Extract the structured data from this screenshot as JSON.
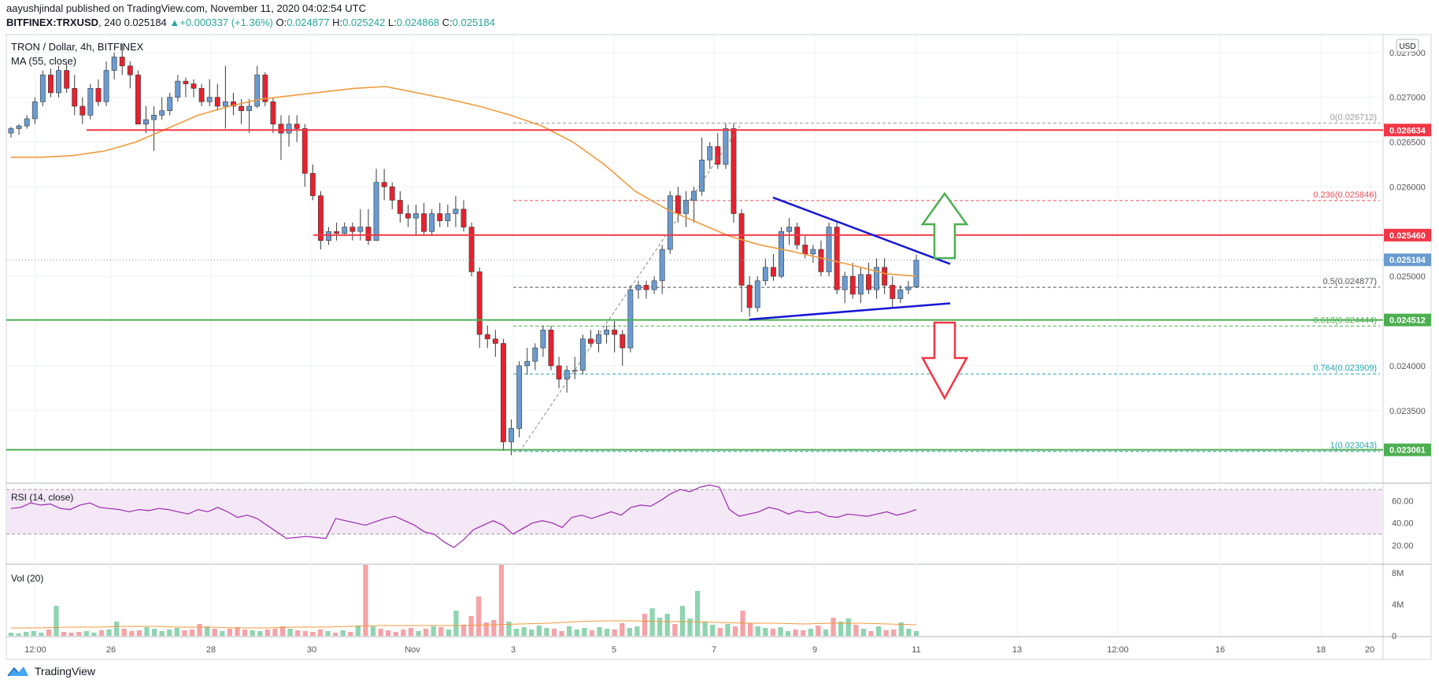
{
  "header": {
    "published_line": "aayushjindal published on TradingView.com, November 11, 2020 04:02:54 UTC",
    "symbol": "BITFINEX:TRXUSD",
    "interval": "240",
    "last": "0.025184",
    "change": "+0.000337 (+1.36%)",
    "open_label": "O:",
    "open": "0.024877",
    "high_label": "H:",
    "high": "0.025242",
    "low_label": "L:",
    "low": "0.024868",
    "close_label": "C:",
    "close": "0.025184"
  },
  "footer": {
    "brand": "TradingView"
  },
  "colors": {
    "up": "#6a9bd1",
    "down": "#e8212e",
    "ma": "#f09a3b",
    "red_line": "#f23645",
    "green_line": "#4caf50",
    "blue_trend": "#1515d6",
    "rsi": "#9c27b0",
    "vol_up": "#8fd4b0",
    "vol_down": "#f5a3a6",
    "fib_red": "#f0505a",
    "fib_teal": "#26a6b0"
  },
  "chart_data": [
    {
      "type": "candlestick",
      "title": "TRON / Dollar, 4h, BITFINEX",
      "indicator_label": "MA (55, close)",
      "currency_badge": "USD",
      "ylim": [
        0.0229,
        0.0277
      ],
      "y_ticks": [
        "0.027500",
        "0.027000",
        "0.026500",
        "0.026000",
        "0.025000",
        "0.024000",
        "0.023500"
      ],
      "x_ticks": [
        "12:00",
        "26",
        "28",
        "30",
        "Nov",
        "3",
        "5",
        "7",
        "9",
        "11",
        "13",
        "12:00",
        "16",
        "18",
        "20"
      ],
      "price_tags": [
        {
          "label": "0.026634",
          "color": "#f23645"
        },
        {
          "label": "0.025460",
          "color": "#f23645"
        },
        {
          "label": "0.025184",
          "color": "#6a9bd1"
        },
        {
          "label": "0.024512",
          "color": "#4caf50"
        },
        {
          "label": "0.023061",
          "color": "#4caf50"
        }
      ],
      "fib_levels": [
        {
          "label": "0(0.026712)",
          "value": 0.026712,
          "color": "#9a9a9a"
        },
        {
          "label": "0.236(0.025846)",
          "value": 0.025846,
          "color": "#f0505a"
        },
        {
          "label": "0.5(0.024877)",
          "value": 0.024877,
          "color": "#555555"
        },
        {
          "label": "0.618(0.024444)",
          "value": 0.024444,
          "color": "#4caf50"
        },
        {
          "label": "0.764(0.023909)",
          "value": 0.023909,
          "color": "#26a6b0"
        },
        {
          "label": "1(0.023043)",
          "value": 0.023043,
          "color": "#26a6b0"
        }
      ],
      "horizontal_levels": [
        {
          "value": 0.026634,
          "color": "#f23645"
        },
        {
          "value": 0.02546,
          "color": "#f23645"
        },
        {
          "value": 0.024512,
          "color": "#4caf50"
        },
        {
          "value": 0.023061,
          "color": "#4caf50"
        }
      ],
      "candles": [
        [
          0.0266,
          0.02667,
          0.02655,
          0.02665
        ],
        [
          0.02665,
          0.0267,
          0.02658,
          0.02668
        ],
        [
          0.02668,
          0.0268,
          0.02665,
          0.02676
        ],
        [
          0.02676,
          0.027,
          0.0267,
          0.02695
        ],
        [
          0.02695,
          0.0273,
          0.0269,
          0.02725
        ],
        [
          0.02725,
          0.02732,
          0.027,
          0.02705
        ],
        [
          0.02705,
          0.02735,
          0.027,
          0.0273
        ],
        [
          0.0273,
          0.02738,
          0.02705,
          0.0271
        ],
        [
          0.0271,
          0.02725,
          0.0268,
          0.0269
        ],
        [
          0.0269,
          0.027,
          0.0267,
          0.0268
        ],
        [
          0.0268,
          0.02715,
          0.02675,
          0.0271
        ],
        [
          0.0271,
          0.0272,
          0.0269,
          0.02695
        ],
        [
          0.02695,
          0.0274,
          0.0269,
          0.0273
        ],
        [
          0.0273,
          0.0275,
          0.0272,
          0.02745
        ],
        [
          0.02745,
          0.0276,
          0.02725,
          0.02735
        ],
        [
          0.02735,
          0.0274,
          0.0271,
          0.02725
        ],
        [
          0.02725,
          0.0273,
          0.0267,
          0.0267
        ],
        [
          0.0267,
          0.0269,
          0.0266,
          0.02675
        ],
        [
          0.02675,
          0.0269,
          0.0264,
          0.0268
        ],
        [
          0.0268,
          0.027,
          0.02675,
          0.02685
        ],
        [
          0.02685,
          0.02705,
          0.0268,
          0.027
        ],
        [
          0.027,
          0.02725,
          0.02695,
          0.02718
        ],
        [
          0.02718,
          0.02722,
          0.027,
          0.02715
        ],
        [
          0.02715,
          0.0272,
          0.027,
          0.0271
        ],
        [
          0.0271,
          0.02715,
          0.0269,
          0.02695
        ],
        [
          0.02695,
          0.0272,
          0.0269,
          0.027
        ],
        [
          0.027,
          0.02715,
          0.02685,
          0.0269
        ],
        [
          0.0269,
          0.02735,
          0.02665,
          0.02695
        ],
        [
          0.02695,
          0.02705,
          0.0268,
          0.0269
        ],
        [
          0.0269,
          0.02698,
          0.0267,
          0.02685
        ],
        [
          0.02685,
          0.02698,
          0.0266,
          0.0269
        ],
        [
          0.0269,
          0.02735,
          0.02688,
          0.02725
        ],
        [
          0.02725,
          0.02728,
          0.0269,
          0.02695
        ],
        [
          0.02695,
          0.027,
          0.0266,
          0.0267
        ],
        [
          0.0267,
          0.0268,
          0.0263,
          0.0266
        ],
        [
          0.0266,
          0.0268,
          0.02645,
          0.0267
        ],
        [
          0.0267,
          0.0268,
          0.0265,
          0.02665
        ],
        [
          0.02665,
          0.0267,
          0.026,
          0.02615
        ],
        [
          0.02615,
          0.02625,
          0.02585,
          0.0259
        ],
        [
          0.0259,
          0.02595,
          0.0253,
          0.0254
        ],
        [
          0.0254,
          0.02555,
          0.02535,
          0.0255
        ],
        [
          0.0255,
          0.0256,
          0.0254,
          0.02548
        ],
        [
          0.02548,
          0.0256,
          0.02545,
          0.02555
        ],
        [
          0.02555,
          0.0256,
          0.0254,
          0.0255
        ],
        [
          0.0255,
          0.02575,
          0.0254,
          0.02555
        ],
        [
          0.02555,
          0.02575,
          0.02535,
          0.0254
        ],
        [
          0.0254,
          0.0262,
          0.0254,
          0.02605
        ],
        [
          0.02605,
          0.0262,
          0.02585,
          0.026
        ],
        [
          0.026,
          0.02605,
          0.02575,
          0.02585
        ],
        [
          0.02585,
          0.02595,
          0.0256,
          0.0257
        ],
        [
          0.0257,
          0.0258,
          0.02555,
          0.02565
        ],
        [
          0.02565,
          0.0258,
          0.02545,
          0.0257
        ],
        [
          0.0257,
          0.02582,
          0.02545,
          0.0255
        ],
        [
          0.0255,
          0.02575,
          0.02545,
          0.0257
        ],
        [
          0.0257,
          0.02582,
          0.02555,
          0.02562
        ],
        [
          0.02562,
          0.0258,
          0.02555,
          0.0257
        ],
        [
          0.0257,
          0.0259,
          0.02555,
          0.02575
        ],
        [
          0.02575,
          0.02585,
          0.0255,
          0.02555
        ],
        [
          0.02555,
          0.0256,
          0.025,
          0.02505
        ],
        [
          0.02505,
          0.0251,
          0.0242,
          0.02435
        ],
        [
          0.02435,
          0.02445,
          0.0242,
          0.0243
        ],
        [
          0.0243,
          0.0244,
          0.0241,
          0.02425
        ],
        [
          0.02425,
          0.0243,
          0.02305,
          0.02315
        ],
        [
          0.02315,
          0.0234,
          0.023,
          0.0233
        ],
        [
          0.0233,
          0.02405,
          0.0232,
          0.024
        ],
        [
          0.024,
          0.0242,
          0.0239,
          0.02405
        ],
        [
          0.02405,
          0.02425,
          0.02395,
          0.0242
        ],
        [
          0.0242,
          0.02445,
          0.0241,
          0.0244
        ],
        [
          0.0244,
          0.02445,
          0.02395,
          0.024
        ],
        [
          0.024,
          0.0241,
          0.02375,
          0.02385
        ],
        [
          0.02385,
          0.024,
          0.0237,
          0.02395
        ],
        [
          0.02395,
          0.0241,
          0.02385,
          0.02395
        ],
        [
          0.02395,
          0.02435,
          0.0239,
          0.0243
        ],
        [
          0.0243,
          0.0244,
          0.0242,
          0.02425
        ],
        [
          0.02425,
          0.0244,
          0.02415,
          0.02435
        ],
        [
          0.02435,
          0.02445,
          0.02425,
          0.0244
        ],
        [
          0.0244,
          0.0245,
          0.02415,
          0.02435
        ],
        [
          0.02435,
          0.0244,
          0.024,
          0.0242
        ],
        [
          0.0242,
          0.0249,
          0.02415,
          0.02485
        ],
        [
          0.02485,
          0.02495,
          0.02475,
          0.0249
        ],
        [
          0.0249,
          0.02495,
          0.02475,
          0.02485
        ],
        [
          0.02485,
          0.025,
          0.0248,
          0.02495
        ],
        [
          0.02495,
          0.02535,
          0.0248,
          0.0253
        ],
        [
          0.0253,
          0.02595,
          0.02525,
          0.0259
        ],
        [
          0.0259,
          0.026,
          0.0256,
          0.0257
        ],
        [
          0.0257,
          0.02595,
          0.02555,
          0.02585
        ],
        [
          0.02585,
          0.026,
          0.0256,
          0.02595
        ],
        [
          0.02595,
          0.02655,
          0.0259,
          0.0263
        ],
        [
          0.0263,
          0.0265,
          0.0262,
          0.02645
        ],
        [
          0.02645,
          0.0266,
          0.0262,
          0.02625
        ],
        [
          0.02625,
          0.02671,
          0.0262,
          0.02665
        ],
        [
          0.02665,
          0.02671,
          0.0256,
          0.0257
        ],
        [
          0.0257,
          0.02575,
          0.0246,
          0.0249
        ],
        [
          0.0249,
          0.025,
          0.02455,
          0.02465
        ],
        [
          0.02465,
          0.025,
          0.0246,
          0.02495
        ],
        [
          0.02495,
          0.0252,
          0.0249,
          0.0251
        ],
        [
          0.0251,
          0.02525,
          0.02495,
          0.025
        ],
        [
          0.025,
          0.02555,
          0.02498,
          0.0255
        ],
        [
          0.0255,
          0.02565,
          0.02535,
          0.02555
        ],
        [
          0.02555,
          0.0256,
          0.0253,
          0.02535
        ],
        [
          0.02535,
          0.02545,
          0.0252,
          0.02525
        ],
        [
          0.02525,
          0.02535,
          0.02515,
          0.0253
        ],
        [
          0.0253,
          0.0254,
          0.025,
          0.02505
        ],
        [
          0.02505,
          0.0256,
          0.025,
          0.02555
        ],
        [
          0.02555,
          0.0256,
          0.0248,
          0.02485
        ],
        [
          0.02485,
          0.02505,
          0.0247,
          0.025
        ],
        [
          0.025,
          0.02515,
          0.02475,
          0.0248
        ],
        [
          0.0248,
          0.0251,
          0.0247,
          0.02502
        ],
        [
          0.02502,
          0.02515,
          0.0248,
          0.02485
        ],
        [
          0.02485,
          0.0252,
          0.02475,
          0.0251
        ],
        [
          0.0251,
          0.0252,
          0.0248,
          0.0249
        ],
        [
          0.0249,
          0.025,
          0.02465,
          0.02475
        ],
        [
          0.02475,
          0.0249,
          0.0247,
          0.02485
        ],
        [
          0.02485,
          0.02495,
          0.0248,
          0.02488
        ],
        [
          0.02488,
          0.02524,
          0.02487,
          0.02518
        ]
      ],
      "ma55": [
        0.02633,
        0.02633,
        0.02635,
        0.0264,
        0.0265,
        0.02665,
        0.0268,
        0.0269,
        0.02698,
        0.02702,
        0.02706,
        0.0271,
        0.02712,
        0.02705,
        0.02698,
        0.0269,
        0.0268,
        0.02668,
        0.0265,
        0.02625,
        0.02595,
        0.02575,
        0.0256,
        0.02545,
        0.02535,
        0.02528,
        0.0252,
        0.02512,
        0.02503,
        0.025
      ],
      "trendlines": [
        {
          "label": "upper",
          "from": [
            "7.6",
            0.02588
          ],
          "to": [
            "11.6",
            0.025138
          ]
        },
        {
          "label": "lower",
          "from": [
            "7.5",
            0.024518
          ],
          "to": [
            "11.6",
            0.024698
          ]
        }
      ],
      "arrows": [
        {
          "direction": "up",
          "color": "#4caf50"
        },
        {
          "direction": "down",
          "color": "#f23645"
        }
      ]
    },
    {
      "type": "line",
      "title": "RSI (14, close)",
      "ylim": [
        15,
        75
      ],
      "y_ticks": [
        "60.00",
        "40.00",
        "20.00"
      ],
      "band": [
        30,
        70
      ],
      "values": [
        53,
        54,
        58,
        56,
        57,
        53,
        52,
        56,
        58,
        54,
        53,
        52,
        50,
        52,
        51,
        53,
        52,
        50,
        48,
        52,
        50,
        54,
        50,
        45,
        47,
        44,
        38,
        32,
        26,
        27,
        28,
        27,
        26,
        44,
        42,
        40,
        38,
        41,
        44,
        46,
        42,
        38,
        32,
        30,
        23,
        18,
        25,
        34,
        38,
        42,
        38,
        30,
        35,
        40,
        42,
        40,
        36,
        45,
        47,
        44,
        47,
        50,
        47,
        54,
        56,
        55,
        60,
        66,
        70,
        68,
        72,
        74,
        72,
        52,
        46,
        48,
        50,
        54,
        52,
        48,
        51,
        49,
        50,
        46,
        45,
        48,
        47,
        46,
        48,
        50,
        47,
        49,
        52
      ]
    },
    {
      "type": "bar",
      "title": "Vol (20)",
      "y_ticks": [
        "8M",
        "4M",
        "0"
      ],
      "ylim": [
        0,
        9
      ],
      "values": [
        0.4,
        0.3,
        0.5,
        0.6,
        0.4,
        0.8,
        3.8,
        0.5,
        0.4,
        0.5,
        0.6,
        0.4,
        0.7,
        0.8,
        1.8,
        0.9,
        0.6,
        0.7,
        1.1,
        0.9,
        0.6,
        0.8,
        1.0,
        0.7,
        0.8,
        1.5,
        1.2,
        0.9,
        0.6,
        0.9,
        1.1,
        0.8,
        0.7,
        0.6,
        0.8,
        0.9,
        1.2,
        0.9,
        0.7,
        0.6,
        0.5,
        0.8,
        0.6,
        0.4,
        0.7,
        0.5,
        1.3,
        9.0,
        1.2,
        0.9,
        0.7,
        0.5,
        0.8,
        1.0,
        0.6,
        0.9,
        1.2,
        1.1,
        0.8,
        3.2,
        1.4,
        2.5,
        5.0,
        1.7,
        2.0,
        9.0,
        1.8,
        0.9,
        1.1,
        0.8,
        1.3,
        1.0,
        0.9,
        0.6,
        1.2,
        0.8,
        1.0,
        0.7,
        1.1,
        0.9,
        0.8,
        1.6,
        1.0,
        1.2,
        2.8,
        3.5,
        2.3,
        2.8,
        1.5,
        3.8,
        2.2,
        5.7,
        1.8,
        1.4,
        1.0,
        1.5,
        1.2,
        3.2,
        1.6,
        1.2,
        1.0,
        0.9,
        1.1,
        0.6,
        0.8,
        0.7,
        0.9,
        1.3,
        0.8,
        2.3,
        1.8,
        2.2,
        1.4,
        0.9,
        0.6,
        1.2,
        0.7,
        0.8,
        1.7,
        0.9,
        0.6
      ],
      "ma": [
        1.0,
        1.0,
        1.1,
        1.1,
        1.2,
        1.2,
        1.1,
        1.1,
        1.0,
        1.0,
        1.1,
        1.1,
        1.2,
        1.3,
        1.3,
        1.3,
        1.3,
        1.4,
        1.5,
        1.6,
        1.8,
        1.9,
        1.9,
        1.8,
        1.8,
        1.7,
        1.6,
        1.6,
        1.5,
        1.6,
        1.6,
        1.5,
        1.4
      ]
    }
  ]
}
